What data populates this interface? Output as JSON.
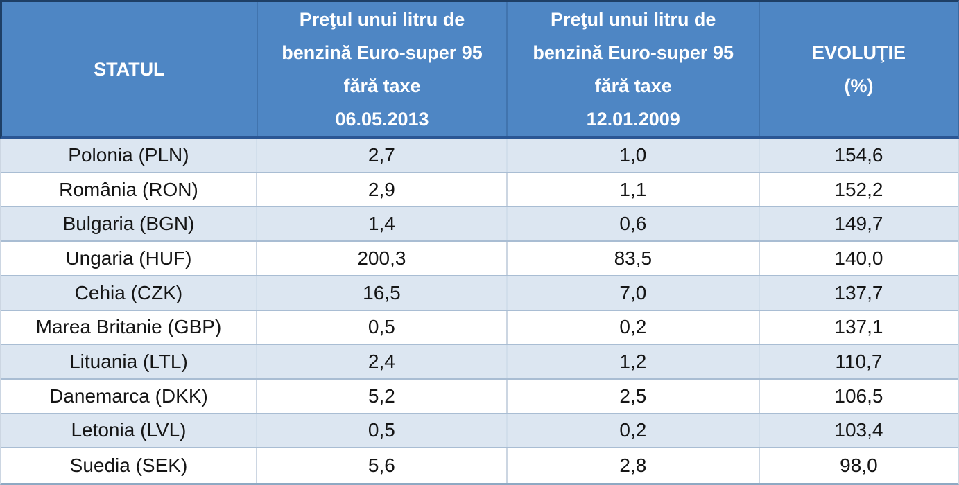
{
  "chart_data": {
    "type": "table",
    "columns": [
      {
        "id": "state",
        "lines": [
          "STATUL"
        ]
      },
      {
        "id": "price_2013",
        "lines": [
          "Preţul unui litru de",
          "benzină Euro-super 95",
          "fără taxe",
          "06.05.2013"
        ]
      },
      {
        "id": "price_2009",
        "lines": [
          "Preţul unui litru de",
          "benzină Euro-super 95",
          "fără taxe",
          "12.01.2009"
        ]
      },
      {
        "id": "evolution",
        "lines": [
          "EVOLUŢIE",
          "(%)"
        ]
      }
    ],
    "rows": [
      [
        "Polonia (PLN)",
        "2,7",
        "1,0",
        "154,6"
      ],
      [
        "România (RON)",
        "2,9",
        "1,1",
        "152,2"
      ],
      [
        "Bulgaria (BGN)",
        "1,4",
        "0,6",
        "149,7"
      ],
      [
        "Ungaria (HUF)",
        "200,3",
        "83,5",
        "140,0"
      ],
      [
        "Cehia (CZK)",
        "16,5",
        "7,0",
        "137,7"
      ],
      [
        "Marea Britanie (GBP)",
        "0,5",
        "0,2",
        "137,1"
      ],
      [
        "Lituania (LTL)",
        "2,4",
        "1,2",
        "110,7"
      ],
      [
        "Danemarca (DKK)",
        "5,2",
        "2,5",
        "106,5"
      ],
      [
        "Letonia (LVL)",
        "0,5",
        "0,2",
        "103,4"
      ],
      [
        "Suedia (SEK)",
        "5,6",
        "2,8",
        "98,0"
      ]
    ]
  },
  "colors": {
    "header_bg": "#4e86c4",
    "header_text": "#ffffff",
    "outline_dark": "#1e3f66",
    "header_bottom_border": "#2a5694",
    "stripe": "#dce6f1",
    "row_bg": "#ffffff",
    "grid_border": "#a9bdd3",
    "cell_divider": "#ccd6e2",
    "bottom_border": "#8ea9c3",
    "body_text": "#151515"
  }
}
